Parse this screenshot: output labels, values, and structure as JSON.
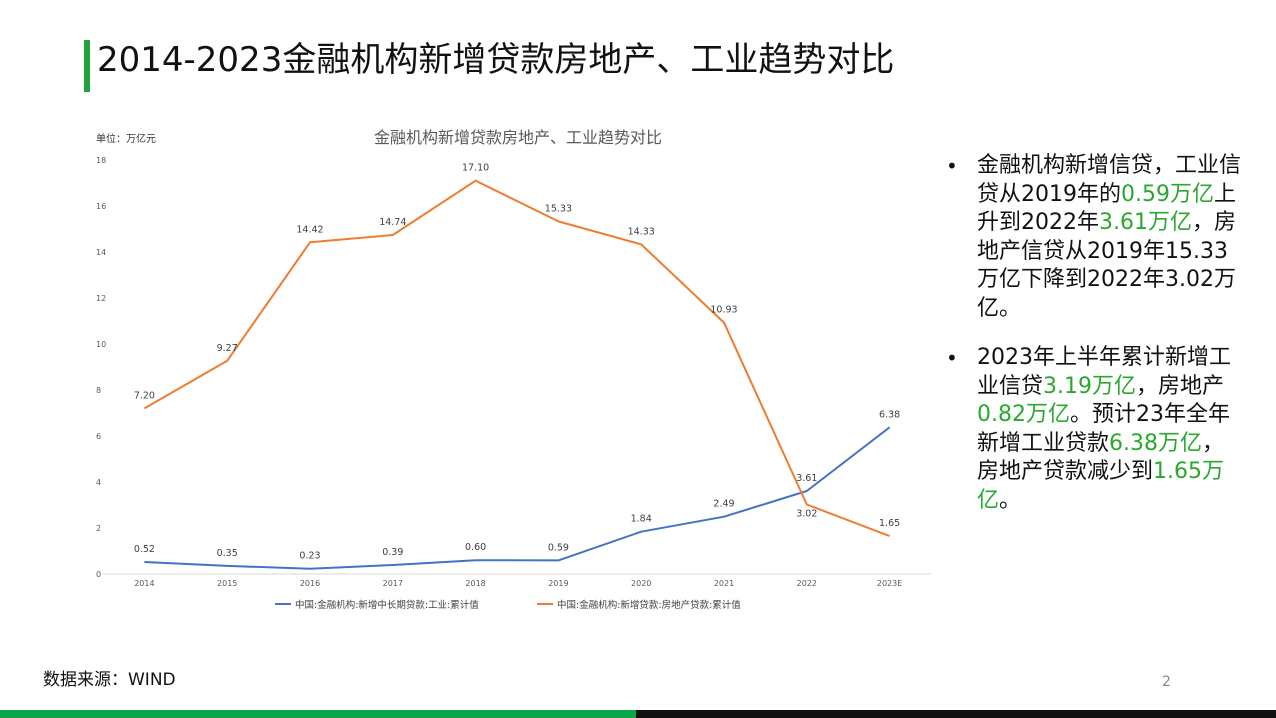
{
  "slide": {
    "title": "2014-2023金融机构新增贷款房地产、工业趋势对比",
    "source": "数据来源：WIND",
    "page_number": "2",
    "accent_color": "#22a33a",
    "bullets": [
      [
        {
          "text": "金融机构新增信贷，工业信贷从2019年的",
          "hl": false
        },
        {
          "text": "0.59万亿",
          "hl": true
        },
        {
          "text": "上升到2022年",
          "hl": false
        },
        {
          "text": "3.61万亿",
          "hl": true
        },
        {
          "text": "，房地产信贷从2019年15.33万亿下降到2022年3.02万亿。",
          "hl": false
        }
      ],
      [
        {
          "text": "2023年上半年累计新增工业信贷",
          "hl": false
        },
        {
          "text": "3.19万亿",
          "hl": true
        },
        {
          "text": "，房地产",
          "hl": false
        },
        {
          "text": "0.82万亿",
          "hl": true
        },
        {
          "text": "。预计23年全年新增工业贷款",
          "hl": false
        },
        {
          "text": "6.38万亿",
          "hl": true
        },
        {
          "text": "，房地产贷款减少到",
          "hl": false
        },
        {
          "text": "1.65万亿",
          "hl": true
        },
        {
          "text": "。",
          "hl": false
        }
      ]
    ],
    "bullet_glyph": "•"
  },
  "chart_data": {
    "type": "line",
    "title": "金融机构新增贷款房地产、工业趋势对比",
    "unit_label": "单位：万亿元",
    "categories": [
      "2014",
      "2015",
      "2016",
      "2017",
      "2018",
      "2019",
      "2020",
      "2021",
      "2022",
      "2023E"
    ],
    "ylim": [
      0,
      18
    ],
    "yticks": [
      0,
      2,
      4,
      6,
      8,
      10,
      12,
      14,
      16,
      18
    ],
    "grid": false,
    "legend_position": "bottom",
    "series": [
      {
        "name": "中国:金融机构:新增中长期贷款:工业:累计值",
        "color": "#4472c4",
        "values": [
          0.52,
          0.35,
          0.23,
          0.39,
          0.6,
          0.59,
          1.84,
          2.49,
          3.61,
          6.38
        ],
        "labels": [
          "0.52",
          "0.35",
          "0.23",
          "0.39",
          "0.60",
          "0.59",
          "1.84",
          "2.49",
          "3.61",
          "6.38"
        ]
      },
      {
        "name": "中国:金融机构:新增贷款:房地产贷款:累计值",
        "color": "#ed7d31",
        "values": [
          7.2,
          9.27,
          14.42,
          14.74,
          17.1,
          15.33,
          14.33,
          10.93,
          3.02,
          1.65
        ],
        "labels": [
          "7.20",
          "9.27",
          "14.42",
          "14.74",
          "17.10",
          "15.33",
          "14.33",
          "10.93",
          "3.02",
          "1.65"
        ]
      }
    ]
  }
}
